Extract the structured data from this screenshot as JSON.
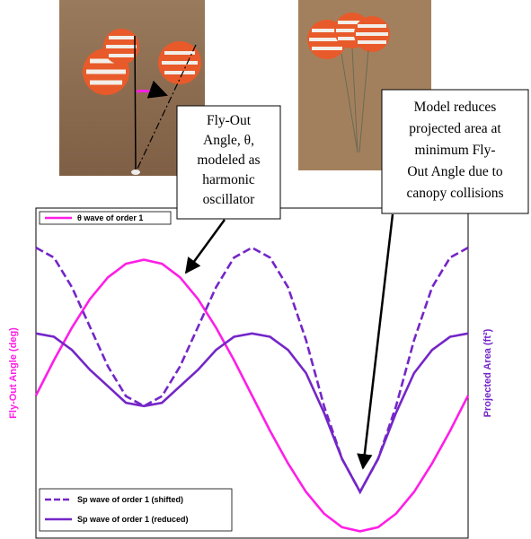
{
  "chart_data": {
    "type": "line",
    "y_label": "Fly-Out Angle (deg)",
    "y2_label": "Projected Area (ft²)",
    "x": [
      0,
      1,
      2,
      3,
      4,
      5,
      6,
      7,
      8,
      9,
      10,
      11,
      12,
      13,
      14,
      15,
      16,
      17,
      18,
      19,
      20,
      21,
      22,
      23,
      24
    ],
    "xlim": [
      0,
      24
    ],
    "ylim": [
      -1.05,
      1.38
    ],
    "y2lim": [
      0,
      1
    ],
    "series": [
      {
        "name": "θ wave of order 1",
        "color": "#ff1ee6",
        "dashed": false,
        "values": [
          0,
          0.26,
          0.5,
          0.71,
          0.87,
          0.97,
          1,
          0.97,
          0.87,
          0.71,
          0.5,
          0.26,
          0,
          -0.26,
          -0.5,
          -0.71,
          -0.87,
          -0.97,
          -1,
          -0.97,
          -0.87,
          -0.71,
          -0.5,
          -0.26,
          0
        ]
      },
      {
        "name": "Sp wave of order 1 (shifted)",
        "color": "#7426c8",
        "dashed": true,
        "axis": "y2",
        "values": [
          0.88,
          0.85,
          0.76,
          0.64,
          0.52,
          0.43,
          0.4,
          0.43,
          0.52,
          0.64,
          0.76,
          0.85,
          0.88,
          0.85,
          0.76,
          0.6,
          0.4,
          0.24,
          0.14,
          0.24,
          0.4,
          0.6,
          0.76,
          0.85,
          0.88
        ]
      },
      {
        "name": "Sp wave of order 1 (reduced)",
        "color": "#7426c8",
        "dashed": false,
        "axis": "y2",
        "values": [
          0.62,
          0.61,
          0.57,
          0.51,
          0.46,
          0.41,
          0.4,
          0.41,
          0.46,
          0.51,
          0.57,
          0.61,
          0.62,
          0.61,
          0.57,
          0.5,
          0.38,
          0.24,
          0.14,
          0.24,
          0.38,
          0.5,
          0.57,
          0.61,
          0.62
        ]
      }
    ],
    "annotations": [
      {
        "lines": [
          "Fly-Out",
          "Angle, θ,",
          "modeled as",
          "harmonic",
          "oscillator"
        ]
      },
      {
        "lines": [
          "Model reduces",
          "projected area at",
          "minimum Fly-",
          "Out Angle due to",
          "canopy collisions"
        ]
      }
    ]
  }
}
